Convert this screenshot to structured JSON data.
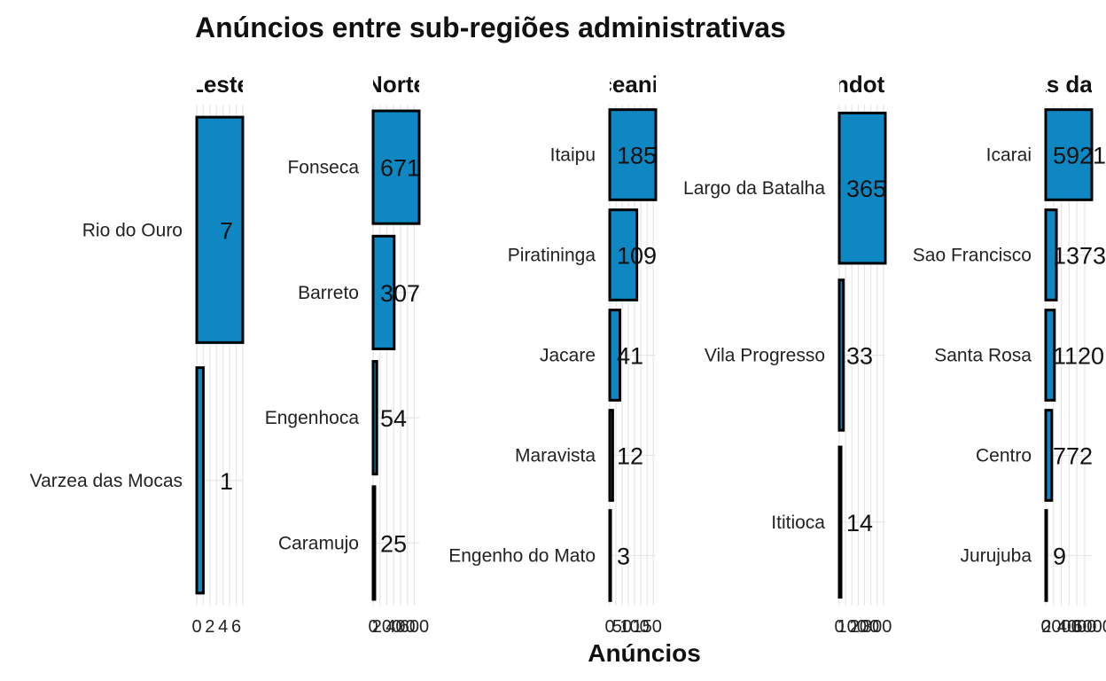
{
  "chart_data": {
    "type": "bar",
    "orientation": "horizontal",
    "title": "Anúncios entre sub-regiões administrativas",
    "xlabel": "Anúncios",
    "ylabel": "",
    "bar_color": "#0E87C3",
    "bar_border": "#000000",
    "grid": true,
    "facets": [
      {
        "strip": "Leste",
        "categories": [
          "Rio do Ouro",
          "Varzea das Mocas"
        ],
        "values": [
          7,
          1
        ],
        "xlim": [
          0,
          7
        ],
        "xticks": [
          "0",
          "2",
          "4",
          "6"
        ]
      },
      {
        "strip": "Norte",
        "categories": [
          "Fonseca",
          "Barreto",
          "Engenhoca",
          "Caramujo"
        ],
        "values": [
          671,
          307,
          54,
          25
        ],
        "xlim": [
          0,
          671
        ],
        "xticks": [
          "0",
          "200",
          "400",
          "600"
        ]
      },
      {
        "strip": "Oceanica",
        "categories": [
          "Itaipu",
          "Piratininga",
          "Jacare",
          "Maravista",
          "Engenho do Mato"
        ],
        "values": [
          185,
          109,
          41,
          12,
          3
        ],
        "xlim": [
          0,
          185
        ],
        "xticks": [
          "0",
          "50",
          "100",
          "150"
        ]
      },
      {
        "strip": "Pendotiba",
        "categories": [
          "Largo da Batalha",
          "Vila Progresso",
          "Ititioca"
        ],
        "values": [
          365,
          33,
          14
        ],
        "xlim": [
          0,
          365
        ],
        "xticks": [
          "0",
          "100",
          "200",
          "300"
        ]
      },
      {
        "strip": "Praias da Baia",
        "categories": [
          "Icarai",
          "Sao Francisco",
          "Santa Rosa",
          "Centro",
          "Jurujuba"
        ],
        "values": [
          5921,
          1373,
          1120,
          772,
          9
        ],
        "xlim": [
          0,
          5921
        ],
        "xticks": [
          "0",
          "2000",
          "4000",
          "6000"
        ]
      }
    ]
  }
}
